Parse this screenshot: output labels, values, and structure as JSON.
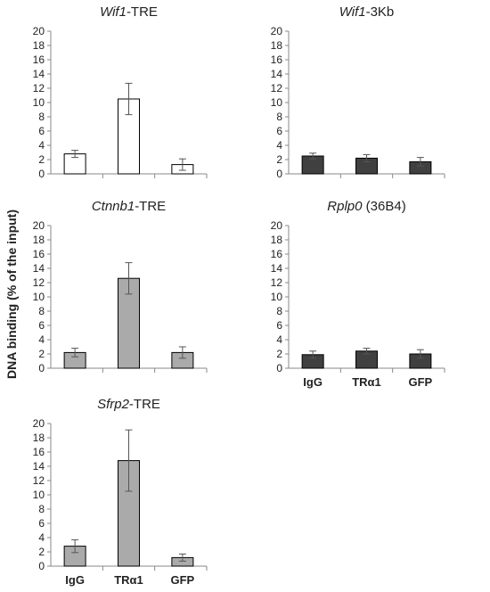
{
  "figure": {
    "y_axis_label": "DNA binding (% of the input)"
  },
  "chart_data": [
    {
      "type": "bar",
      "title_italic": "Wif1",
      "title_rest": "-TRE",
      "categories": [
        "IgG",
        "TRα1",
        "GFP"
      ],
      "show_category_labels": false,
      "values": [
        2.8,
        10.5,
        1.3
      ],
      "errors": [
        0.5,
        2.2,
        0.8
      ],
      "ylim": [
        0,
        20
      ],
      "yticks": [
        0,
        2,
        4,
        6,
        8,
        10,
        12,
        14,
        16,
        18,
        20
      ],
      "bar_color": "#ffffff"
    },
    {
      "type": "bar",
      "title_italic": "Wif1",
      "title_rest": "-3Kb",
      "categories": [
        "IgG",
        "TRα1",
        "GFP"
      ],
      "show_category_labels": false,
      "values": [
        2.5,
        2.2,
        1.7
      ],
      "errors": [
        0.4,
        0.5,
        0.6
      ],
      "ylim": [
        0,
        20
      ],
      "yticks": [
        0,
        2,
        4,
        6,
        8,
        10,
        12,
        14,
        16,
        18,
        20
      ],
      "bar_color": "#404040"
    },
    {
      "type": "bar",
      "title_italic": "Ctnnb1",
      "title_rest": "-TRE",
      "categories": [
        "IgG",
        "TRα1",
        "GFP"
      ],
      "show_category_labels": false,
      "values": [
        2.2,
        12.6,
        2.2
      ],
      "errors": [
        0.6,
        2.2,
        0.8
      ],
      "ylim": [
        0,
        20
      ],
      "yticks": [
        0,
        2,
        4,
        6,
        8,
        10,
        12,
        14,
        16,
        18,
        20
      ],
      "bar_color": "#aaaaaa"
    },
    {
      "type": "bar",
      "title_italic": "Rplp0",
      "title_rest": " (36B4)",
      "categories": [
        "IgG",
        "TRα1",
        "GFP"
      ],
      "show_category_labels": true,
      "values": [
        1.9,
        2.4,
        2.0
      ],
      "errors": [
        0.5,
        0.4,
        0.6
      ],
      "ylim": [
        0,
        20
      ],
      "yticks": [
        0,
        2,
        4,
        6,
        8,
        10,
        12,
        14,
        16,
        18,
        20
      ],
      "bar_color": "#404040"
    },
    {
      "type": "bar",
      "title_italic": "Sfrp2",
      "title_rest": "-TRE",
      "categories": [
        "IgG",
        "TRα1",
        "GFP"
      ],
      "show_category_labels": true,
      "values": [
        2.8,
        14.8,
        1.2
      ],
      "errors": [
        0.9,
        4.3,
        0.5
      ],
      "ylim": [
        0,
        20
      ],
      "yticks": [
        0,
        2,
        4,
        6,
        8,
        10,
        12,
        14,
        16,
        18,
        20
      ],
      "bar_color": "#aaaaaa"
    }
  ]
}
